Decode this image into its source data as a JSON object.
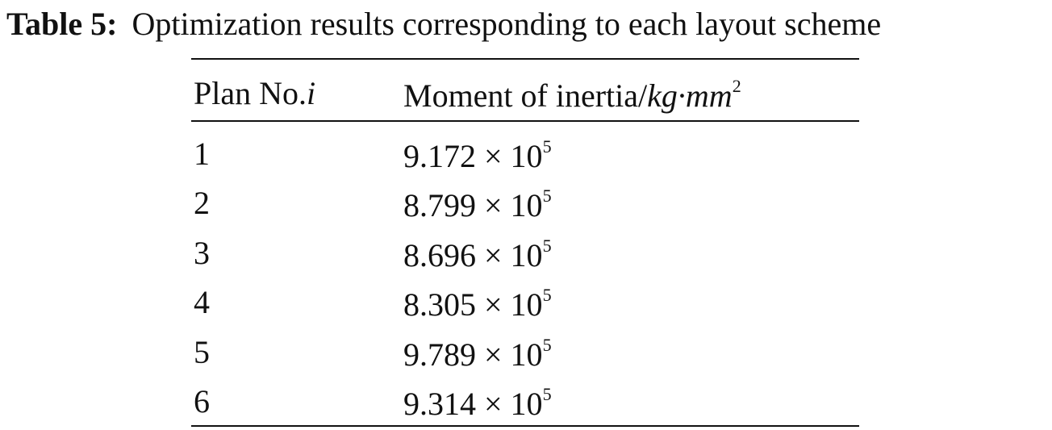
{
  "caption": {
    "label": "Table 5:",
    "text": "Optimization results corresponding to each layout scheme"
  },
  "table": {
    "header": [
      {
        "text": "Plan No.",
        "italic": "i"
      },
      {
        "text": "Moment of inertia/",
        "italic": "kg·mm",
        "sup": "2"
      }
    ],
    "rows": [
      [
        "1",
        {
          "base": "9.172 × 10",
          "sup": "5"
        }
      ],
      [
        "2",
        {
          "base": "8.799 × 10",
          "sup": "5"
        }
      ],
      [
        "3",
        {
          "base": "8.696 × 10",
          "sup": "5"
        }
      ],
      [
        "4",
        {
          "base": "8.305 × 10",
          "sup": "5"
        }
      ],
      [
        "5",
        {
          "base": "9.789 × 10",
          "sup": "5"
        }
      ],
      [
        "6",
        {
          "base": "9.314 × 10",
          "sup": "5"
        }
      ]
    ]
  }
}
